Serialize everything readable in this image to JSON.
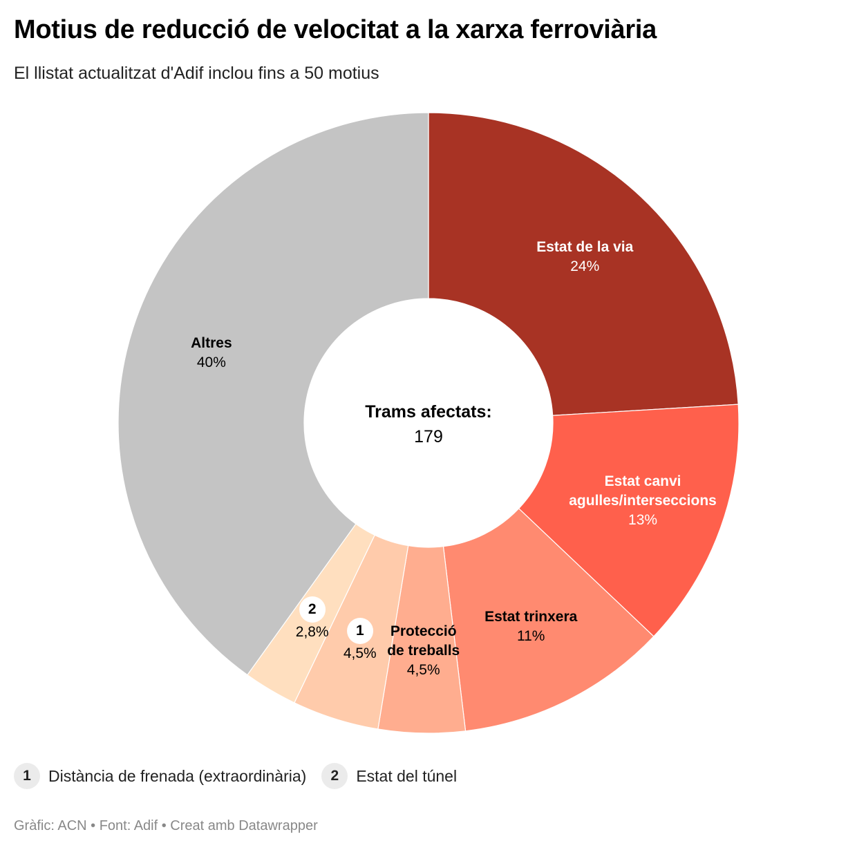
{
  "title": "Motius de reducció de velocitat a la xarxa ferroviària",
  "subtitle": "El llistat actualitzat d'Adif inclou fins a 50 motius",
  "chart_data": {
    "type": "pie",
    "variant": "donut",
    "center_label": "Trams afectats:",
    "center_value": "179",
    "slices": [
      {
        "name": "Estat de la via",
        "value": 24,
        "value_label": "24%",
        "color": "#a83324",
        "text": "light"
      },
      {
        "name": "Estat canvi agulles/interseccions",
        "value": 13,
        "value_label": "13%",
        "color": "#ff604c",
        "text": "light"
      },
      {
        "name": "Estat trinxera",
        "value": 11,
        "value_label": "11%",
        "color": "#ff8a70",
        "text": "dark"
      },
      {
        "name": "Protecció de treballs",
        "value": 4.5,
        "value_label": "4,5%",
        "color": "#ffad8f",
        "text": "dark"
      },
      {
        "name": "Distància de frenada (extraordinària)",
        "marker": "1",
        "value": 4.5,
        "value_label": "4,5%",
        "color": "#ffcbab",
        "text": "dark"
      },
      {
        "name": "Estat del túnel",
        "marker": "2",
        "value": 2.8,
        "value_label": "2,8%",
        "color": "#ffdfbf",
        "text": "dark"
      },
      {
        "name": "Altres",
        "value": 40,
        "value_label": "40%",
        "color": "#c4c4c4",
        "text": "dark"
      }
    ],
    "slice_labels": [
      "Estat de la via",
      "Estat canvi<br>agulles/interseccions",
      "Estat trinxera",
      "Protecció<br>de treballs",
      "",
      "",
      "Altres"
    ]
  },
  "legend": [
    {
      "num": "1",
      "label": "Distància de frenada (extraordinària)"
    },
    {
      "num": "2",
      "label": "Estat del túnel"
    }
  ],
  "footer": "Gràfic: ACN • Font: Adif • Creat amb Datawrapper"
}
